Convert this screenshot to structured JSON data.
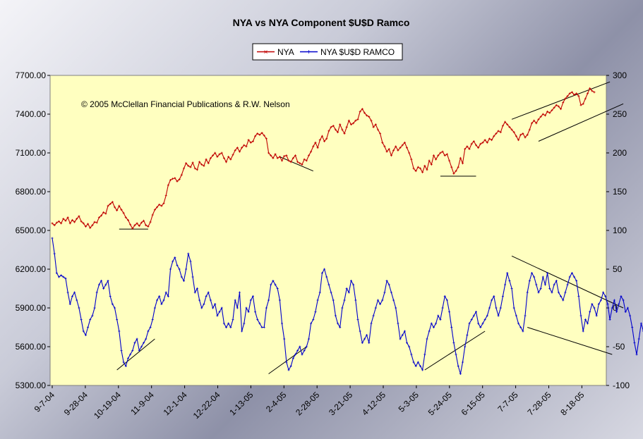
{
  "chart_data": {
    "type": "line",
    "title": "NYA vs NYA Component $U$D Ramco",
    "annotation": "© 2005 McClellan Financial Publications & R.W. Nelson",
    "x_ticks": [
      "9-7-04",
      "9-28-04",
      "10-19-04",
      "11-9-04",
      "12-1-04",
      "12-22-04",
      "1-13-05",
      "2-4-05",
      "2-28-05",
      "3-21-05",
      "4-12-05",
      "5-3-05",
      "5-24-05",
      "6-15-05",
      "7-7-05",
      "7-28-05",
      "8-18-05"
    ],
    "y_left_ticks": [
      "7700.00",
      "7400.00",
      "7100.00",
      "6800.00",
      "6500.00",
      "6200.00",
      "5900.00",
      "5600.00",
      "5300.00"
    ],
    "y_right_ticks": [
      "300",
      "250",
      "200",
      "150",
      "100",
      "50",
      "0",
      "-50",
      "-100"
    ],
    "ylim_left": [
      5300,
      7700
    ],
    "ylim_right": [
      -100,
      300
    ],
    "grid": false,
    "legend_position": "top-center",
    "colors": {
      "nya": "#c00000",
      "ramco": "#0000cc",
      "plot_bg": "#ffffc0"
    },
    "series": [
      {
        "name": "NYA",
        "axis": "left",
        "values": [
          6555,
          6540,
          6560,
          6570,
          6555,
          6590,
          6575,
          6600,
          6555,
          6580,
          6565,
          6590,
          6610,
          6570,
          6555,
          6530,
          6550,
          6520,
          6540,
          6565,
          6560,
          6600,
          6615,
          6640,
          6630,
          6690,
          6705,
          6720,
          6680,
          6655,
          6690,
          6660,
          6635,
          6600,
          6580,
          6545,
          6515,
          6540,
          6555,
          6535,
          6560,
          6575,
          6540,
          6530,
          6565,
          6620,
          6660,
          6680,
          6700,
          6690,
          6710,
          6770,
          6850,
          6890,
          6900,
          6905,
          6880,
          6895,
          6930,
          6980,
          7020,
          7000,
          6990,
          7025,
          6980,
          6970,
          7030,
          7010,
          7000,
          7050,
          7020,
          7060,
          7080,
          7100,
          7070,
          7090,
          7100,
          7060,
          7030,
          7070,
          7050,
          7085,
          7120,
          7140,
          7110,
          7140,
          7160,
          7150,
          7200,
          7180,
          7190,
          7230,
          7250,
          7240,
          7255,
          7235,
          7210,
          7100,
          7080,
          7060,
          7090,
          7060,
          7070,
          7040,
          7075,
          7080,
          7040,
          7030,
          7060,
          7080,
          7030,
          7020,
          7010,
          7050,
          7040,
          7080,
          7110,
          7150,
          7180,
          7140,
          7200,
          7230,
          7190,
          7210,
          7270,
          7300,
          7310,
          7280,
          7260,
          7320,
          7280,
          7250,
          7300,
          7350,
          7320,
          7330,
          7350,
          7360,
          7420,
          7440,
          7410,
          7390,
          7380,
          7350,
          7300,
          7320,
          7280,
          7250,
          7180,
          7150,
          7110,
          7130,
          7080,
          7120,
          7150,
          7120,
          7140,
          7160,
          7180,
          7140,
          7100,
          7050,
          6980,
          6960,
          6990,
          6980,
          6950,
          7000,
          6970,
          7040,
          7010,
          7080,
          7050,
          7080,
          7100,
          7110,
          7080,
          7090,
          7040,
          6990,
          6940,
          6960,
          6990,
          7060,
          7020,
          7130,
          7150,
          7130,
          7170,
          7190,
          7160,
          7140,
          7170,
          7180,
          7200,
          7180,
          7210,
          7200,
          7230,
          7250,
          7270,
          7260,
          7310,
          7340,
          7320,
          7300,
          7280,
          7260,
          7230,
          7200,
          7240,
          7250,
          7220,
          7240,
          7280,
          7330,
          7350,
          7330,
          7360,
          7380,
          7400,
          7390,
          7420,
          7410,
          7430,
          7450,
          7470,
          7460,
          7440,
          7490,
          7520,
          7540,
          7560,
          7570,
          7550,
          7560,
          7540,
          7470,
          7480,
          7520,
          7560,
          7600,
          7580,
          7570
        ]
      },
      {
        "name": "NYA $U$D RAMCO",
        "axis": "right",
        "values": [
          90,
          70,
          45,
          40,
          42,
          40,
          38,
          20,
          5,
          15,
          20,
          10,
          0,
          -15,
          -30,
          -35,
          -25,
          -15,
          -10,
          0,
          20,
          30,
          35,
          25,
          30,
          35,
          15,
          5,
          0,
          -15,
          -30,
          -55,
          -70,
          -75,
          -65,
          -60,
          -55,
          -45,
          -40,
          -55,
          -50,
          -45,
          -40,
          -30,
          -25,
          -15,
          0,
          10,
          15,
          5,
          10,
          20,
          15,
          50,
          60,
          65,
          55,
          50,
          40,
          35,
          50,
          70,
          60,
          40,
          20,
          25,
          10,
          0,
          5,
          15,
          20,
          10,
          0,
          5,
          -10,
          -5,
          0,
          -20,
          -25,
          -20,
          -25,
          -15,
          10,
          0,
          20,
          -30,
          -20,
          0,
          -5,
          10,
          15,
          -5,
          -15,
          -20,
          -25,
          -25,
          0,
          10,
          30,
          35,
          30,
          25,
          10,
          -20,
          -40,
          -70,
          -80,
          -75,
          -65,
          -60,
          -55,
          -50,
          -60,
          -55,
          -50,
          -40,
          -20,
          -15,
          -5,
          10,
          20,
          45,
          50,
          40,
          30,
          20,
          10,
          -10,
          -20,
          -25,
          0,
          10,
          25,
          20,
          35,
          30,
          10,
          -15,
          -30,
          -45,
          -40,
          -35,
          -45,
          -20,
          -10,
          0,
          10,
          5,
          10,
          20,
          35,
          30,
          20,
          10,
          0,
          -20,
          -40,
          -35,
          -30,
          -45,
          -50,
          -60,
          -70,
          -75,
          -70,
          -75,
          -80,
          -60,
          -40,
          -30,
          -20,
          -25,
          -20,
          -10,
          -15,
          0,
          15,
          10,
          -5,
          -25,
          -45,
          -60,
          -75,
          -85,
          -70,
          -50,
          -35,
          -20,
          -15,
          -10,
          -5,
          -20,
          -25,
          -20,
          -15,
          -10,
          0,
          10,
          15,
          0,
          -10,
          0,
          15,
          30,
          45,
          35,
          25,
          0,
          -10,
          -20,
          -25,
          -30,
          -10,
          20,
          35,
          45,
          40,
          30,
          20,
          25,
          40,
          30,
          45,
          25,
          20,
          30,
          35,
          20,
          15,
          10,
          20,
          30,
          40,
          45,
          40,
          35,
          15,
          -10,
          -30,
          -15,
          -20,
          -5,
          5,
          0,
          -10,
          5,
          10,
          20,
          15,
          5,
          -15,
          0,
          10,
          -5,
          5,
          15,
          10,
          -5,
          0,
          -10,
          -25,
          -45,
          -60,
          -40,
          -20,
          -30,
          -10
        ]
      }
    ],
    "trendlines": [
      {
        "axis": "left",
        "x": [
          30,
          43
        ],
        "y": [
          6510,
          6510
        ]
      },
      {
        "axis": "left",
        "x": [
          102,
          117
        ],
        "y": [
          7070,
          6960
        ]
      },
      {
        "axis": "left",
        "x": [
          174,
          190
        ],
        "y": [
          6920,
          6920
        ]
      },
      {
        "axis": "left",
        "x": [
          206,
          250
        ],
        "y": [
          7360,
          7650
        ]
      },
      {
        "axis": "left",
        "x": [
          218,
          256
        ],
        "y": [
          7190,
          7480
        ]
      },
      {
        "axis": "right",
        "x": [
          29,
          46
        ],
        "y": [
          -80,
          -40
        ]
      },
      {
        "axis": "right",
        "x": [
          97,
          114
        ],
        "y": [
          -85,
          -50
        ]
      },
      {
        "axis": "right",
        "x": [
          167,
          194
        ],
        "y": [
          -80,
          -30
        ]
      },
      {
        "axis": "right",
        "x": [
          206,
          256
        ],
        "y": [
          67,
          0
        ]
      },
      {
        "axis": "right",
        "x": [
          213,
          251
        ],
        "y": [
          -25,
          -60
        ]
      }
    ]
  }
}
